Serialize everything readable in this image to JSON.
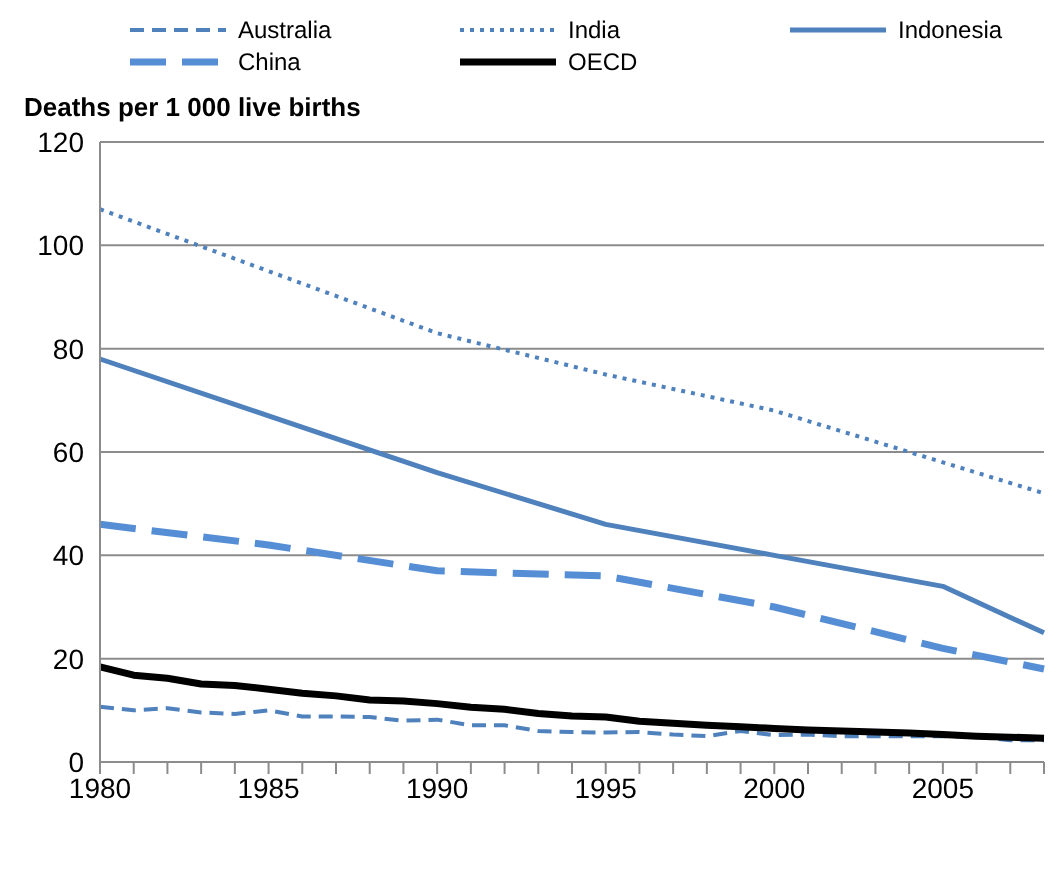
{
  "chart_data": {
    "type": "line",
    "ylabel": "Deaths per 1 000 live births",
    "categories": [
      "1980",
      null,
      null,
      null,
      null,
      "1985",
      null,
      null,
      null,
      null,
      "1990",
      null,
      null,
      null,
      null,
      "1995",
      null,
      null,
      null,
      null,
      "2000",
      null,
      null,
      null,
      null,
      "2005",
      null,
      null,
      null
    ],
    "series": [
      {
        "name": "Australia",
        "color": "#4f81bd",
        "line_style": "dashed",
        "values": [
          10.7,
          10,
          10.4,
          9.6,
          9.3,
          10,
          8.8,
          8.8,
          8.7,
          8,
          8.2,
          7.1,
          7.1,
          6,
          5.8,
          5.7,
          5.8,
          5.3,
          5,
          6,
          5.2,
          5.3,
          5,
          5,
          5,
          5,
          4.9,
          4.2,
          4.2
        ]
      },
      {
        "name": "India",
        "color": "#4f81bd",
        "line_style": "dotted",
        "values": [
          107,
          null,
          null,
          null,
          null,
          95,
          null,
          null,
          null,
          null,
          83,
          null,
          null,
          null,
          null,
          75,
          null,
          null,
          null,
          null,
          68,
          null,
          null,
          null,
          null,
          58,
          null,
          null,
          52
        ]
      },
      {
        "name": "Indonesia",
        "color": "#4f81bd",
        "line_style": "solid",
        "values": [
          78,
          null,
          null,
          null,
          null,
          67,
          null,
          null,
          null,
          null,
          56,
          null,
          null,
          null,
          null,
          46,
          null,
          null,
          null,
          null,
          40,
          null,
          null,
          null,
          null,
          34,
          null,
          null,
          25
        ]
      },
      {
        "name": "China",
        "color": "#558ed5",
        "line_style": "longdash",
        "values": [
          46,
          null,
          null,
          null,
          null,
          42,
          null,
          null,
          null,
          null,
          37,
          null,
          null,
          null,
          null,
          36,
          null,
          null,
          null,
          null,
          30,
          null,
          null,
          null,
          null,
          22,
          null,
          null,
          18
        ]
      },
      {
        "name": "OECD",
        "color": "#000000",
        "line_style": "solid",
        "values": [
          18.4,
          16.8,
          16.2,
          15.1,
          14.8,
          14.1,
          13.3,
          12.8,
          12,
          11.8,
          11.3,
          10.6,
          10.2,
          9.4,
          8.9,
          8.7,
          7.9,
          7.5,
          7.1,
          6.8,
          6.5,
          6.2,
          6,
          5.8,
          5.6,
          5.3,
          5,
          4.8,
          4.6
        ]
      }
    ],
    "ylim": [
      0,
      120
    ],
    "yticks": [
      0,
      20,
      40,
      60,
      80,
      100,
      120
    ],
    "grid": "y",
    "legend": "top",
    "marker": "none"
  }
}
